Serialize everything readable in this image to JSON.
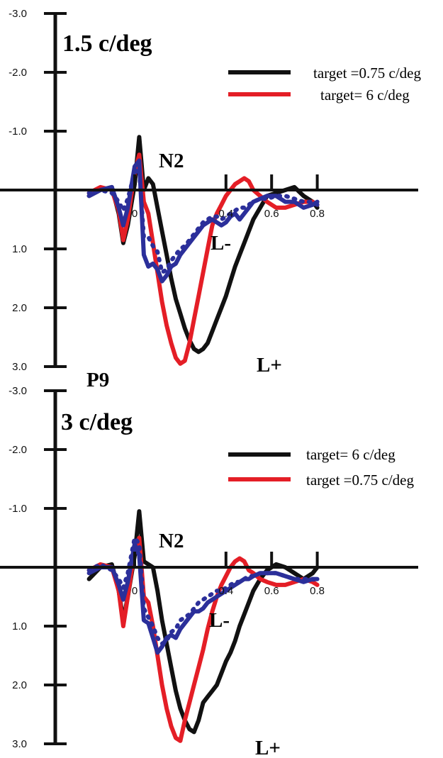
{
  "colors": {
    "black": "#111111",
    "red": "#e41e26",
    "blue": "#2b2f9a",
    "axis": "#111111"
  },
  "chart_data": [
    {
      "type": "line",
      "title": "1.5 c/deg",
      "x_ticks": [
        "0",
        "0.4",
        "0.6",
        "0.8"
      ],
      "y_ticks": [
        "-3.0",
        "-2.0",
        "-1.0",
        "1.0",
        "2.0",
        "3.0"
      ],
      "xlim": [
        -0.2,
        0.8
      ],
      "ylim": [
        -3.0,
        3.0
      ],
      "y_inverted": true,
      "grid": false,
      "legend_position": "top-right",
      "legend": [
        {
          "label": "target =0.75 c/deg",
          "color": "#111111"
        },
        {
          "label": "target= 6 c/deg",
          "color": "#e41e26"
        }
      ],
      "annotations": [
        {
          "text": "N2",
          "x": 0.05,
          "y": -1.15
        },
        {
          "text": "L-",
          "x": 0.3,
          "y": 0.95
        },
        {
          "text": "L+",
          "x": 0.5,
          "y": 3.0
        },
        {
          "text": "P9",
          "x": -0.15,
          "y": 3.3
        }
      ],
      "x": [
        -0.2,
        -0.15,
        -0.1,
        -0.07,
        -0.05,
        -0.03,
        0,
        0.02,
        0.04,
        0.06,
        0.08,
        0.1,
        0.12,
        0.14,
        0.16,
        0.18,
        0.2,
        0.22,
        0.24,
        0.26,
        0.28,
        0.3,
        0.32,
        0.34,
        0.36,
        0.38,
        0.4,
        0.42,
        0.44,
        0.46,
        0.48,
        0.5,
        0.52,
        0.55,
        0.58,
        0.62,
        0.66,
        0.7,
        0.74,
        0.78,
        0.8
      ],
      "series": [
        {
          "color": "#111111",
          "style": "solid",
          "values": [
            0.1,
            0,
            -0.05,
            0.4,
            0.9,
            0.6,
            -0.1,
            -0.9,
            0,
            -0.2,
            -0.1,
            0.3,
            0.7,
            1.1,
            1.5,
            1.85,
            2.1,
            2.35,
            2.55,
            2.7,
            2.75,
            2.7,
            2.6,
            2.4,
            2.2,
            2,
            1.8,
            1.55,
            1.3,
            1.1,
            0.9,
            0.7,
            0.5,
            0.3,
            0.1,
            0.05,
            0,
            -0.05,
            0.1,
            0.2,
            0.3
          ]
        },
        {
          "color": "#e41e26",
          "style": "solid",
          "values": [
            0.05,
            -0.05,
            0,
            0.35,
            0.85,
            0.5,
            -0.3,
            -0.6,
            0.2,
            0.4,
            0.9,
            1.4,
            1.9,
            2.3,
            2.6,
            2.85,
            2.95,
            2.9,
            2.6,
            2.2,
            1.8,
            1.4,
            1.0,
            0.6,
            0.4,
            0.25,
            0.1,
            0.0,
            -0.1,
            -0.15,
            -0.2,
            -0.15,
            0,
            0.1,
            0.2,
            0.3,
            0.3,
            0.25,
            0.2,
            0.2,
            0.25
          ]
        },
        {
          "color": "#2b2f9a",
          "style": "solid",
          "values": [
            0.1,
            0,
            -0.05,
            0.3,
            0.6,
            0.3,
            -0.4,
            -0.5,
            1.1,
            1.3,
            1.25,
            1.35,
            1.55,
            1.45,
            1.3,
            1.25,
            1.1,
            1.0,
            0.9,
            0.8,
            0.7,
            0.6,
            0.55,
            0.5,
            0.55,
            0.6,
            0.55,
            0.45,
            0.4,
            0.5,
            0.4,
            0.3,
            0.2,
            0.15,
            0.1,
            0.1,
            0.2,
            0.2,
            0.3,
            0.25,
            0.2
          ]
        },
        {
          "color": "#2b2f9a",
          "style": "dotted",
          "values": [
            0.05,
            0,
            0.05,
            0.2,
            0.35,
            0.15,
            -0.3,
            -0.35,
            0.8,
            0.8,
            0.95,
            1.05,
            1.4,
            1.35,
            1.2,
            1.1,
            1.0,
            0.95,
            0.85,
            0.75,
            0.65,
            0.55,
            0.5,
            0.45,
            0.45,
            0.5,
            0.45,
            0.4,
            0.35,
            0.3,
            0.3,
            0.25,
            0.2,
            0.15,
            0.15,
            0.1,
            0.1,
            0.15,
            0.2,
            0.2,
            0.25
          ]
        }
      ]
    },
    {
      "type": "line",
      "title": "3 c/deg",
      "x_ticks": [
        "0",
        "0.4",
        "0.6",
        "0.8"
      ],
      "y_ticks": [
        "-3.0",
        "-2.0",
        "-1.0",
        "1.0",
        "2.0",
        "3.0"
      ],
      "xlim": [
        -0.2,
        0.8
      ],
      "ylim": [
        -3.0,
        3.0
      ],
      "y_inverted": true,
      "grid": false,
      "legend_position": "top-right",
      "legend": [
        {
          "label": "target= 6 c/deg",
          "color": "#111111"
        },
        {
          "label": "target =0.75 c/deg",
          "color": "#e41e26"
        }
      ],
      "annotations": [
        {
          "text": "N2",
          "x": 0.05,
          "y": -1.15
        },
        {
          "text": "L-",
          "x": 0.3,
          "y": 0.95
        },
        {
          "text": "L+",
          "x": 0.5,
          "y": 3.0
        }
      ],
      "x": [
        -0.2,
        -0.15,
        -0.1,
        -0.07,
        -0.05,
        -0.03,
        0,
        0.02,
        0.04,
        0.06,
        0.08,
        0.1,
        0.12,
        0.14,
        0.16,
        0.18,
        0.2,
        0.22,
        0.24,
        0.26,
        0.28,
        0.3,
        0.32,
        0.34,
        0.36,
        0.38,
        0.4,
        0.42,
        0.44,
        0.46,
        0.48,
        0.5,
        0.52,
        0.55,
        0.58,
        0.62,
        0.66,
        0.7,
        0.74,
        0.78,
        0.8
      ],
      "series": [
        {
          "color": "#111111",
          "style": "solid",
          "values": [
            0.2,
            0,
            -0.05,
            0.4,
            0.9,
            0.5,
            -0.2,
            -0.95,
            -0.1,
            -0.05,
            0.0,
            0.4,
            0.9,
            1.3,
            1.7,
            2.1,
            2.4,
            2.6,
            2.75,
            2.8,
            2.6,
            2.3,
            2.2,
            2.1,
            2.0,
            1.8,
            1.6,
            1.45,
            1.25,
            1.0,
            0.8,
            0.6,
            0.4,
            0.2,
            0.05,
            -0.05,
            0,
            0.1,
            0.2,
            0.1,
            0.0
          ]
        },
        {
          "color": "#e41e26",
          "style": "solid",
          "values": [
            0.05,
            -0.05,
            0,
            0.4,
            1.0,
            0.5,
            -0.3,
            -0.5,
            0.5,
            0.6,
            1.0,
            1.5,
            2.0,
            2.4,
            2.7,
            2.9,
            2.95,
            2.6,
            2.3,
            2.0,
            1.7,
            1.4,
            1.05,
            0.75,
            0.5,
            0.3,
            0.15,
            0.0,
            -0.1,
            -0.15,
            -0.1,
            0.05,
            0.1,
            0.2,
            0.25,
            0.3,
            0.3,
            0.25,
            0.2,
            0.25,
            0.3
          ]
        },
        {
          "color": "#2b2f9a",
          "style": "solid",
          "values": [
            0.1,
            0,
            0,
            0.3,
            0.55,
            0.25,
            -0.4,
            -0.2,
            0.9,
            0.95,
            1.2,
            1.45,
            1.35,
            1.2,
            1.15,
            1.2,
            1.05,
            0.95,
            0.85,
            0.75,
            0.75,
            0.7,
            0.6,
            0.55,
            0.5,
            0.45,
            0.4,
            0.35,
            0.3,
            0.25,
            0.2,
            0.2,
            0.15,
            0.1,
            0.1,
            0.1,
            0.15,
            0.2,
            0.25,
            0.2,
            0.2
          ]
        },
        {
          "color": "#2b2f9a",
          "style": "dotted",
          "values": [
            0.05,
            -0.05,
            0.05,
            0.2,
            0.35,
            0.1,
            -0.5,
            -0.4,
            0.7,
            0.85,
            1.0,
            1.2,
            1.3,
            1.25,
            1.1,
            1.05,
            0.9,
            0.85,
            0.8,
            0.7,
            0.6,
            0.55,
            0.5,
            0.45,
            0.4,
            0.4,
            0.35,
            0.3,
            0.25,
            0.25,
            0.2,
            0.15,
            0.15,
            0.1,
            0.1,
            0.1,
            0.15,
            0.2,
            0.2,
            0.2,
            0.25
          ]
        }
      ]
    }
  ]
}
